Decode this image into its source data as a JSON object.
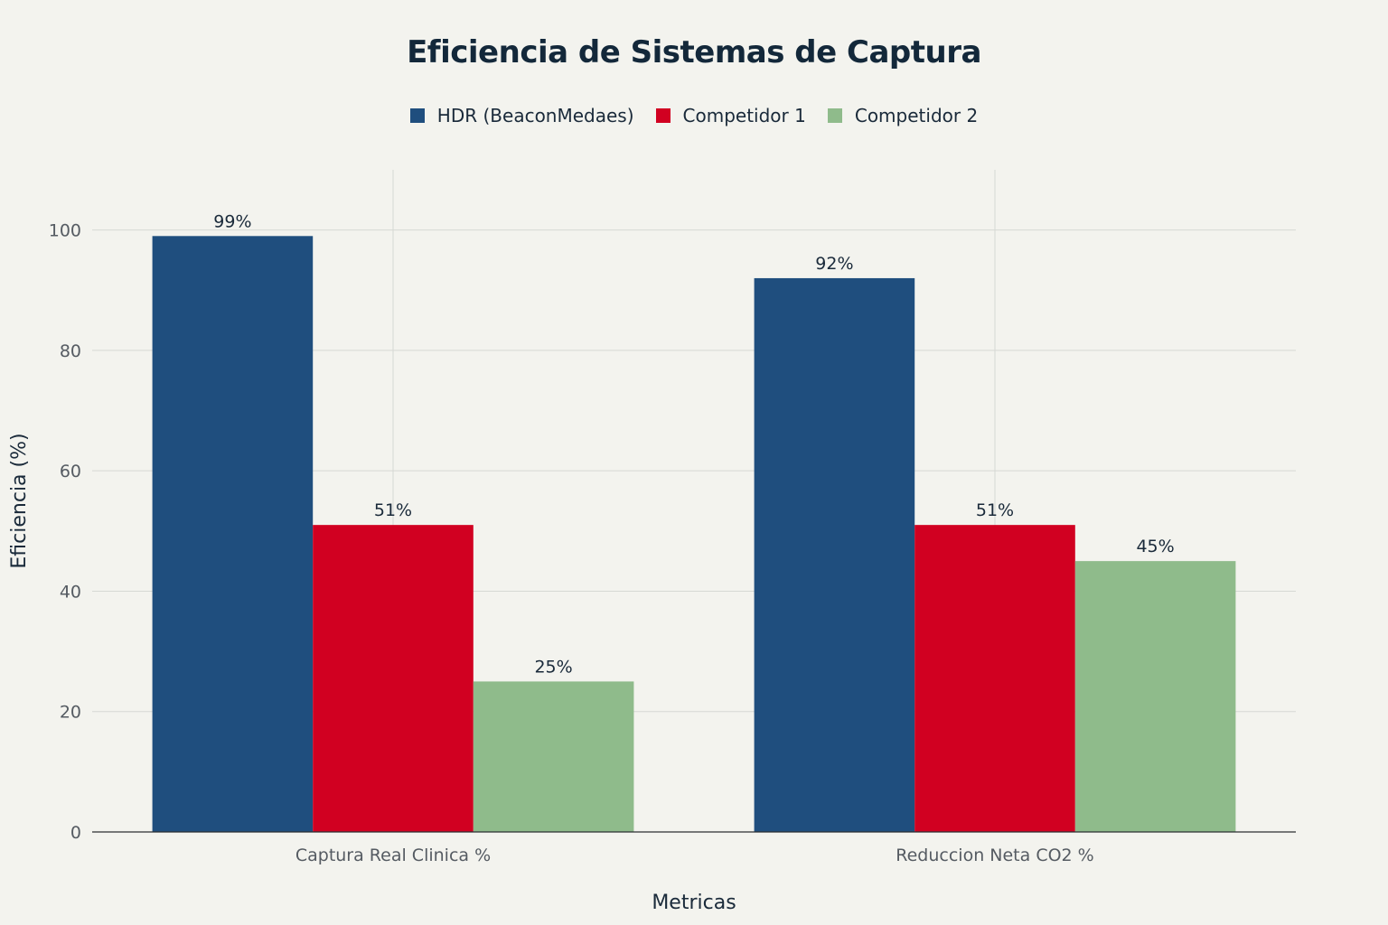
{
  "chart_data": {
    "type": "bar",
    "title": "Eficiencia de Sistemas de Captura",
    "xlabel": "Metricas",
    "ylabel": "Eficiencia (%)",
    "categories": [
      "Captura Real Clinica %",
      "Reduccion Neta CO2 %"
    ],
    "series": [
      {
        "name": "HDR (BeaconMedaes)",
        "color": "#1f4e7e",
        "values": [
          99,
          92
        ],
        "labels": [
          "99%",
          "92%"
        ]
      },
      {
        "name": "Competidor 1",
        "color": "#d10021",
        "values": [
          51,
          51
        ],
        "labels": [
          "51%",
          "51%"
        ]
      },
      {
        "name": "Competidor 2",
        "color": "#8fbb8b",
        "values": [
          25,
          45
        ],
        "labels": [
          "25%",
          "45%"
        ]
      }
    ],
    "ylim": [
      0,
      110
    ],
    "yticks": [
      0,
      20,
      40,
      60,
      80,
      100
    ],
    "grid": true,
    "legend_position": "top-center"
  }
}
